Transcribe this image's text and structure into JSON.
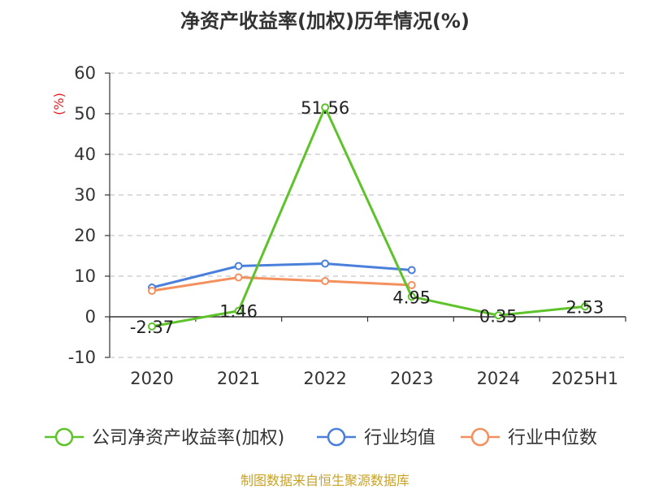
{
  "title": "净资产收益率(加权)历年情况(%)",
  "source": "制图数据来自恒生聚源数据库",
  "chart_data": {
    "type": "line",
    "ylabel": "(%)",
    "ylim": [
      -10,
      60
    ],
    "yticks": [
      -10,
      0,
      10,
      20,
      30,
      40,
      50,
      60
    ],
    "categories": [
      "2020",
      "2021",
      "2022",
      "2023",
      "2024",
      "2025H1"
    ],
    "grid": true,
    "legend_position": "bottom",
    "series": [
      {
        "name": "公司净资产收益率(加权)",
        "color": "#5ec32a",
        "values": [
          -2.37,
          1.46,
          51.56,
          4.95,
          0.35,
          2.53
        ],
        "labels": [
          "-2.37",
          "1.46",
          "51.56",
          "4.95",
          "0.35",
          "2.53"
        ]
      },
      {
        "name": "行业均值",
        "color": "#4a7fdc",
        "values": [
          7.2,
          12.5,
          13.1,
          11.5,
          null,
          null
        ]
      },
      {
        "name": "行业中位数",
        "color": "#f4905d",
        "values": [
          6.4,
          9.7,
          8.8,
          7.8,
          null,
          null
        ]
      }
    ]
  }
}
